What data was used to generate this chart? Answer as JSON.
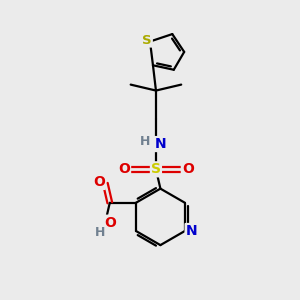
{
  "background_color": "#ebebeb",
  "atom_colors": {
    "C": "#000000",
    "N": "#0000cc",
    "O": "#dd0000",
    "S_thio": "#aaaa00",
    "S_sulfonyl": "#cccc00",
    "H": "#708090"
  },
  "bond_color": "#000000",
  "bond_lw": 1.6,
  "figsize": [
    3.0,
    3.0
  ],
  "dpi": 100
}
